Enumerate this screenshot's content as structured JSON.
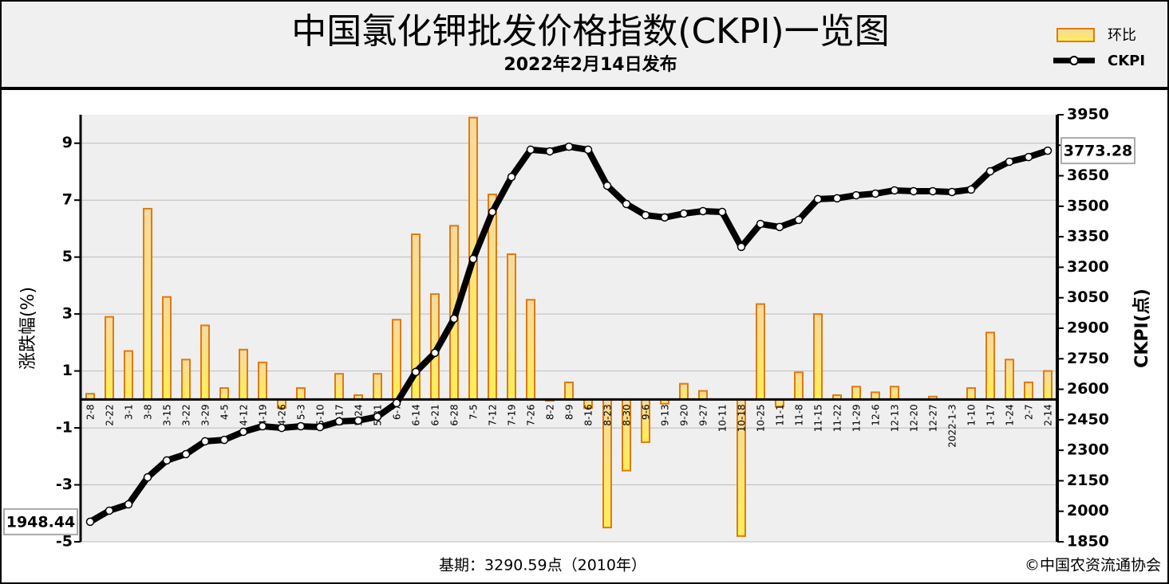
{
  "chart_data": {
    "type": "bar-line",
    "title": "中国氯化钾批发价格指数(CKPI)一览图",
    "subtitle": "2022年2月14日发布",
    "y_label": "涨跌幅(%)",
    "y2_label": "CKPI(点)",
    "footer_note": "基期：3290.59点（2010年）",
    "copyright": "©中国农资流通协会",
    "categories": [
      "2-8",
      "2-22",
      "3-1",
      "3-8",
      "3-15",
      "3-22",
      "3-29",
      "4-5",
      "4-12",
      "4-19",
      "4-26",
      "5-3",
      "5-10",
      "5-17",
      "5-24",
      "5-31",
      "6-7",
      "6-14",
      "6-21",
      "6-28",
      "7-5",
      "7-12",
      "7-19",
      "7-26",
      "8-2",
      "8-9",
      "8-16",
      "8-23",
      "8-30",
      "9-6",
      "9-13",
      "9-20",
      "9-27",
      "10-11",
      "10-18",
      "10-25",
      "11-1",
      "11-8",
      "11-15",
      "11-22",
      "11-29",
      "12-6",
      "12-13",
      "12-20",
      "12-27",
      "2022-1-3",
      "1-10",
      "1-17",
      "1-24",
      "2-7",
      "2-14"
    ],
    "series": [
      {
        "name": "环比",
        "type": "bar",
        "color": "#e07a10",
        "values": [
          0.2,
          2.9,
          1.7,
          6.7,
          3.6,
          1.4,
          2.6,
          0.4,
          1.75,
          1.3,
          -0.3,
          0.4,
          0,
          0.9,
          0.15,
          0.9,
          2.8,
          5.8,
          3.7,
          6.1,
          9.9,
          7.2,
          5.1,
          3.5,
          -0.05,
          0.6,
          -0.3,
          -4.5,
          -2.5,
          -1.5,
          -0.15,
          0.55,
          0.3,
          0,
          -4.8,
          3.35,
          -0.25,
          0.95,
          3.0,
          0.15,
          0.45,
          0.25,
          0.45,
          0,
          0.1,
          0,
          0.4,
          2.35,
          1.4,
          0.6,
          1.0
        ]
      },
      {
        "name": "CKPI",
        "type": "line",
        "axis": "y2",
        "color": "#000000",
        "values": [
          1948.44,
          2003,
          2034,
          2167,
          2250,
          2281,
          2344,
          2351,
          2391,
          2418,
          2410,
          2418,
          2414,
          2442,
          2446,
          2465,
          2532,
          2685,
          2779,
          2947,
          3241,
          3472,
          3644,
          3778,
          3770,
          3793,
          3778,
          3601,
          3511,
          3456,
          3445,
          3464,
          3476,
          3472,
          3300,
          3413,
          3398,
          3433,
          3535,
          3539,
          3554,
          3562,
          3578,
          3574,
          3574,
          3570,
          3582,
          3672,
          3719,
          3742,
          3773.28
        ]
      }
    ],
    "ylim": [
      -5,
      10
    ],
    "yticks": [
      -5,
      -3,
      -1,
      1,
      3,
      5,
      7,
      9
    ],
    "y2lim": [
      1850,
      3950
    ],
    "y2ticks": [
      1850,
      2000,
      2150,
      2300,
      2450,
      2600,
      2750,
      2900,
      3050,
      3200,
      3350,
      3500,
      3650,
      3800,
      3950
    ],
    "grid": true
  }
}
